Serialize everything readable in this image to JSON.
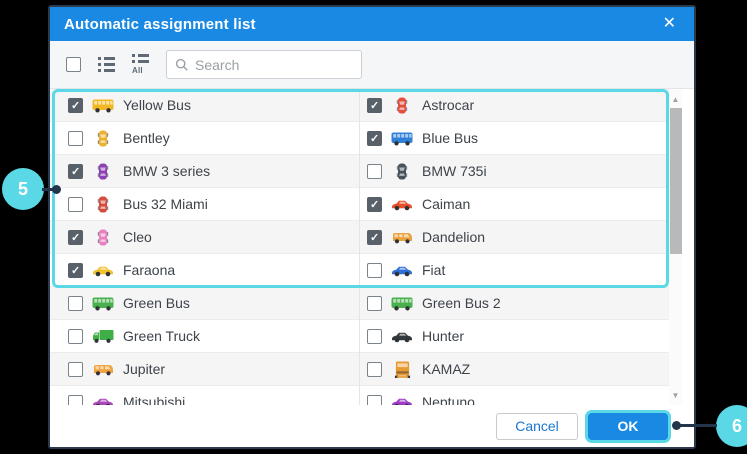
{
  "dialog": {
    "title": "Automatic assignment list",
    "close_icon": "✕"
  },
  "toolbar": {
    "search_placeholder": "Search",
    "all_icon_label": "All"
  },
  "list": {
    "highlight_row_count": 6,
    "left": [
      {
        "name": "Yellow Bus",
        "checked": true,
        "icon": "bus-side",
        "color": "#f2b824"
      },
      {
        "name": "Bentley",
        "checked": false,
        "icon": "car-top",
        "color": "#ecb22e"
      },
      {
        "name": "BMW 3 series",
        "checked": true,
        "icon": "car-top",
        "color": "#8e3fb5"
      },
      {
        "name": "Bus 32 Miami",
        "checked": false,
        "icon": "car-top",
        "color": "#d84a3a"
      },
      {
        "name": "Cleo",
        "checked": true,
        "icon": "car-top",
        "color": "#ea7fc3"
      },
      {
        "name": "Faraona",
        "checked": true,
        "icon": "car-side",
        "color": "#f2c12c"
      },
      {
        "name": "Green Bus",
        "checked": false,
        "icon": "bus-side",
        "color": "#49b04d"
      },
      {
        "name": "Green Truck",
        "checked": false,
        "icon": "truck-side",
        "color": "#3fae46"
      },
      {
        "name": "Jupiter",
        "checked": false,
        "icon": "van-side",
        "color": "#f0a23c"
      },
      {
        "name": "Mitsubishi",
        "checked": false,
        "icon": "car-side",
        "color": "#ab47bc"
      }
    ],
    "right": [
      {
        "name": "Astrocar",
        "checked": true,
        "icon": "car-top",
        "color": "#e34f3d"
      },
      {
        "name": "Blue Bus",
        "checked": true,
        "icon": "bus-side",
        "color": "#2f80d8"
      },
      {
        "name": "BMW 735i",
        "checked": false,
        "icon": "car-top",
        "color": "#45535e"
      },
      {
        "name": "Caiman",
        "checked": true,
        "icon": "car-side",
        "color": "#e8502a"
      },
      {
        "name": "Dandelion",
        "checked": true,
        "icon": "van-side",
        "color": "#eaa23e"
      },
      {
        "name": "Fiat",
        "checked": false,
        "icon": "car-side",
        "color": "#2f6fd8"
      },
      {
        "name": "Green Bus 2",
        "checked": false,
        "icon": "bus-side",
        "color": "#49b04d"
      },
      {
        "name": "Hunter",
        "checked": false,
        "icon": "car-side",
        "color": "#33383c"
      },
      {
        "name": "KAMAZ",
        "checked": false,
        "icon": "truck-front",
        "color": "#e89a32"
      },
      {
        "name": "Neptuno",
        "checked": false,
        "icon": "car-side",
        "color": "#a13cc6"
      }
    ]
  },
  "footer": {
    "cancel_label": "Cancel",
    "ok_label": "OK"
  },
  "callouts": [
    {
      "label": "5"
    },
    {
      "label": "6"
    }
  ],
  "colors": {
    "header_blue": "#1989e4",
    "highlight_cyan": "#5bd8e6",
    "callout_cyan": "#5bd8e6",
    "callout_line_navy": "#22354a",
    "cancel_text_blue": "#1976d2",
    "ok_button_blue": "#1989e4",
    "row_alt_gray": "#f5f5f6"
  }
}
